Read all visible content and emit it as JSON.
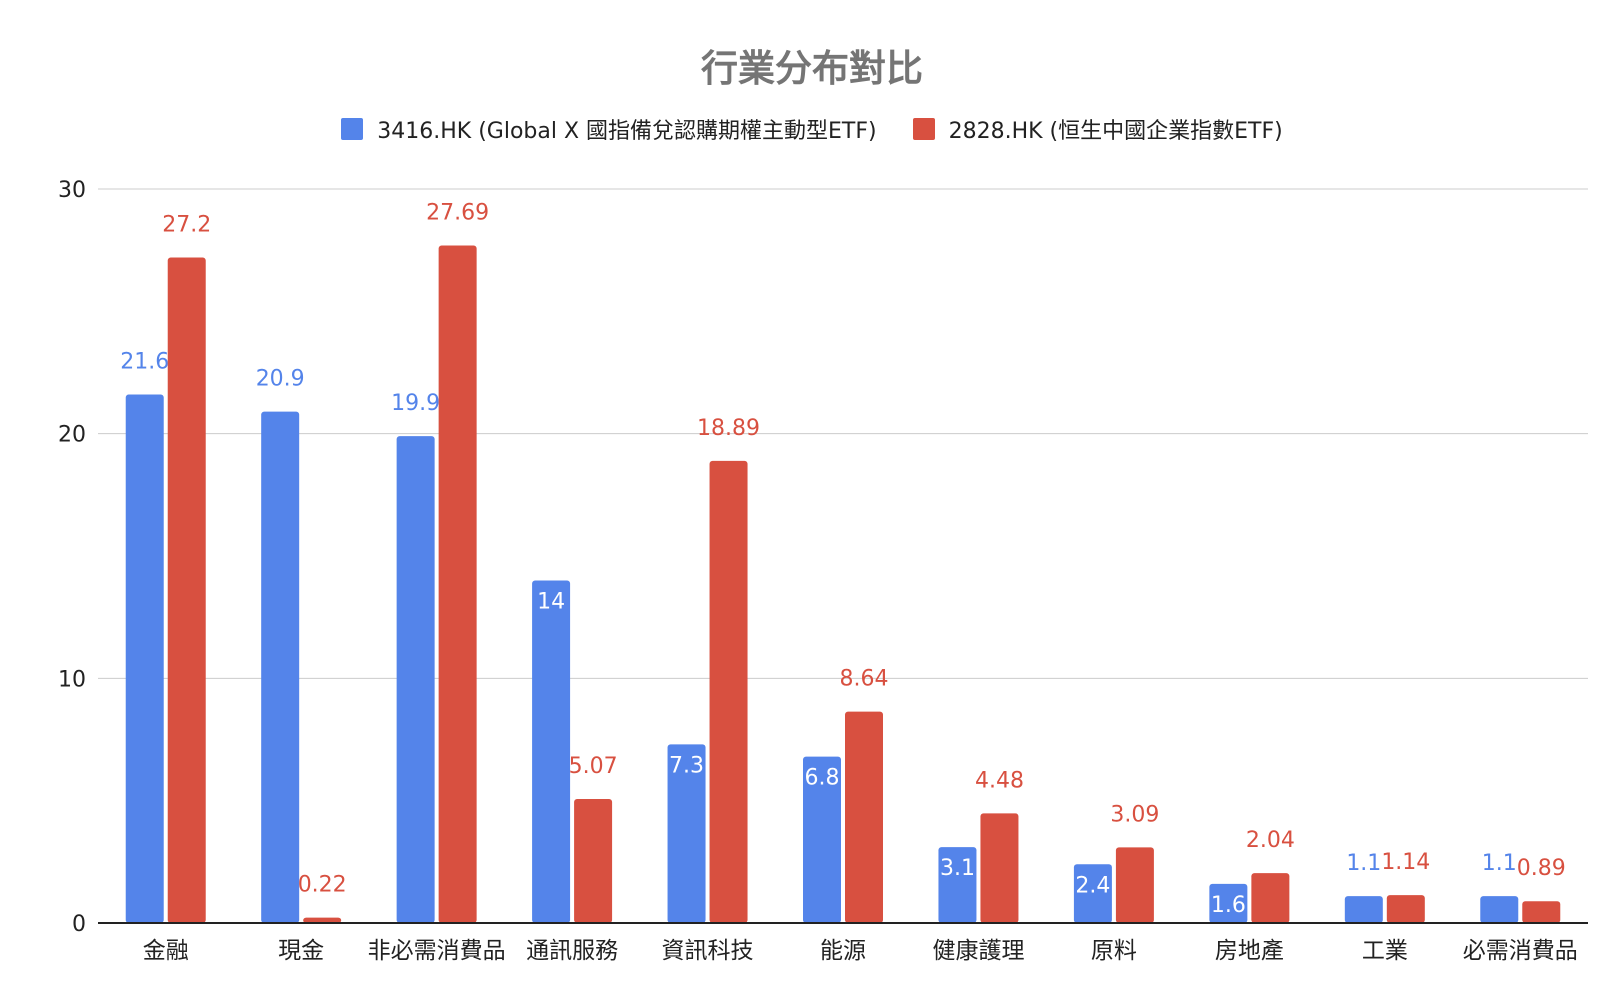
{
  "colors": {
    "series1": "#5484ea",
    "series2": "#d85040",
    "grid": "#cccccc",
    "axis": "#222222",
    "title": "#757575"
  },
  "chart_data": {
    "type": "bar",
    "title": "行業分布對比",
    "xlabel": "",
    "ylabel": "",
    "ylim": [
      0,
      30
    ],
    "yticks": [
      "0",
      "10",
      "20",
      "30"
    ],
    "grid": true,
    "legend": "top-center",
    "categories": [
      "金融",
      "現金",
      "非必需消費品",
      "通訊服務",
      "資訊科技",
      "能源",
      "健康護理",
      "原料",
      "房地產",
      "工業",
      "必需消費品"
    ],
    "series": [
      {
        "name": "3416.HK (Global X 國指備兌認購期權主動型ETF)",
        "values": [
          21.6,
          20.9,
          19.9,
          14,
          7.3,
          6.8,
          3.1,
          2.4,
          1.6,
          1.1,
          1.1
        ]
      },
      {
        "name": "2828.HK (恒生中國企業指數ETF)",
        "values": [
          27.2,
          0.22,
          27.69,
          5.07,
          18.89,
          8.64,
          4.48,
          3.09,
          2.04,
          1.14,
          0.89
        ]
      }
    ]
  }
}
